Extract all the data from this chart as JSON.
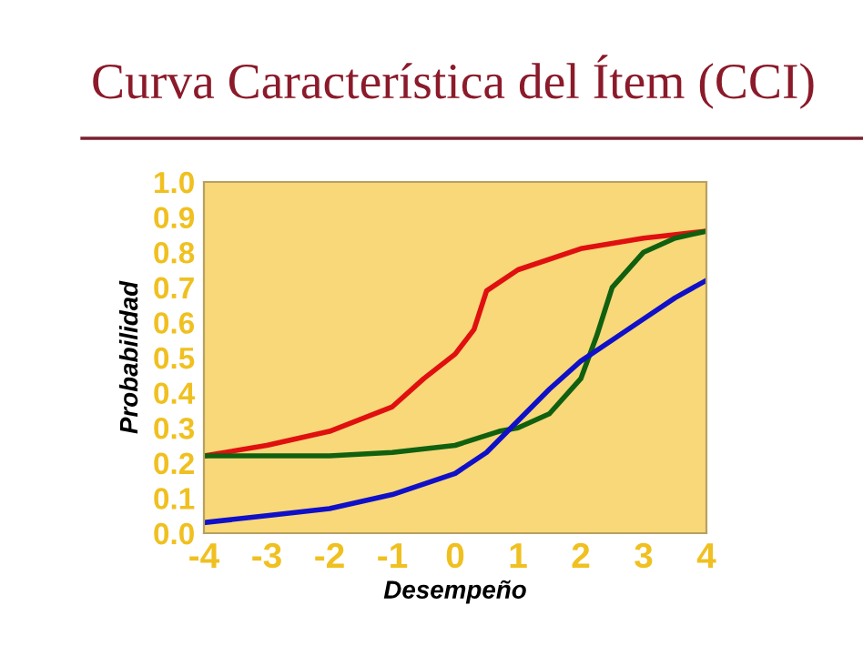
{
  "chart_data": {
    "type": "line",
    "title": "Curva Característica del Ítem (CCI)",
    "xlabel": "Desempeño",
    "ylabel": "Probabilidad",
    "xlim": [
      -4,
      4
    ],
    "xticks": [
      -4,
      -3,
      -2,
      -1,
      0,
      1,
      2,
      3,
      4
    ],
    "ylim": [
      0,
      1
    ],
    "yticks": [
      {
        "value": 0,
        "label": "0.0"
      },
      {
        "value": 0.1,
        "label": "0.1"
      },
      {
        "value": 0.2,
        "label": "0.2"
      },
      {
        "value": 0.3,
        "label": "0.3"
      },
      {
        "value": 0.4,
        "label": "0.4"
      },
      {
        "value": 0.5,
        "label": "0.5"
      },
      {
        "value": 0.6,
        "label": "0.6"
      },
      {
        "value": 0.7,
        "label": "0.7"
      },
      {
        "value": 0.8,
        "label": "0.8"
      },
      {
        "value": 0.9,
        "label": "0.9"
      },
      {
        "value": 1,
        "label": "1.0"
      }
    ],
    "grid": false,
    "legend": false,
    "marker": "none",
    "line_style": "solid",
    "series": [
      {
        "color": "#e01010",
        "x": [
          -4,
          -3,
          -2,
          -1,
          -0.5,
          0,
          0.3,
          0.5,
          1,
          2,
          3,
          4
        ],
        "values": [
          0.22,
          0.25,
          0.29,
          0.36,
          0.44,
          0.51,
          0.58,
          0.69,
          0.75,
          0.81,
          0.84,
          0.86
        ]
      },
      {
        "color": "#106010",
        "x": [
          -4,
          -2,
          -1,
          0,
          0.7,
          1,
          1.5,
          2,
          2.25,
          2.5,
          3,
          3.5,
          4
        ],
        "values": [
          0.22,
          0.22,
          0.23,
          0.25,
          0.29,
          0.3,
          0.34,
          0.44,
          0.56,
          0.7,
          0.8,
          0.84,
          0.86
        ]
      },
      {
        "color": "#1010c8",
        "x": [
          -4,
          -3,
          -2,
          -1,
          0,
          0.5,
          1,
          1.5,
          2,
          2.5,
          3,
          3.5,
          4
        ],
        "values": [
          0.03,
          0.05,
          0.07,
          0.11,
          0.17,
          0.23,
          0.32,
          0.41,
          0.49,
          0.55,
          0.61,
          0.67,
          0.72
        ]
      }
    ]
  }
}
